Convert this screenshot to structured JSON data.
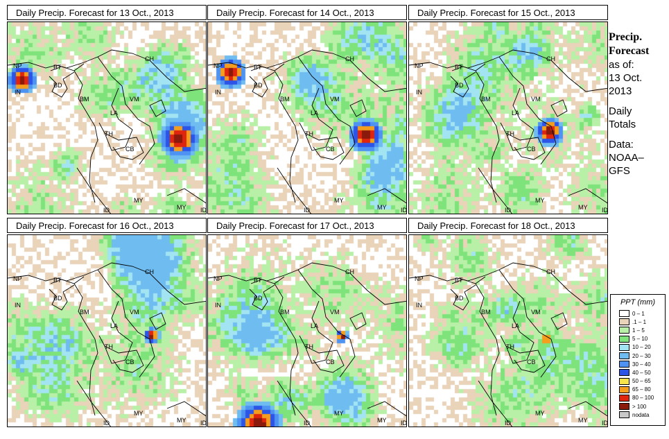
{
  "panels": [
    {
      "title": "Daily Precip. Forecast for  13 Oct., 2013",
      "seed": 13
    },
    {
      "title": "Daily Precip. Forecast for  14 Oct., 2013",
      "seed": 14
    },
    {
      "title": "Daily Precip. Forecast for  15 Oct., 2013",
      "seed": 15
    },
    {
      "title": "Daily Precip. Forecast for  16 Oct., 2013",
      "seed": 16
    },
    {
      "title": "Daily Precip. Forecast for  17 Oct., 2013",
      "seed": 17
    },
    {
      "title": "Daily Precip. Forecast for  18 Oct., 2013",
      "seed": 18
    }
  ],
  "country_labels": [
    "NP",
    "BT",
    "BD",
    "IN",
    "CH",
    "BM",
    "VM",
    "LA",
    "TH",
    "CB",
    "MY",
    "ID"
  ],
  "side": {
    "heading1": "Precip.",
    "heading2": "Forecast",
    "asof": "as of:",
    "date1": "13 Oct.",
    "date2": "2013",
    "daily1": "Daily",
    "daily2": "Totals",
    "data1": "Data:",
    "data2": "NOAA–",
    "data3": "GFS"
  },
  "legend": {
    "title": "PPT (mm)",
    "items": [
      {
        "label": "0 – 1",
        "color": "#ffffff"
      },
      {
        "label": ".1 – 1",
        "color": "#e9d3b9"
      },
      {
        "label": "1 – 5",
        "color": "#b9f0a7"
      },
      {
        "label": "5 – 10",
        "color": "#7fe37c"
      },
      {
        "label": "10 – 20",
        "color": "#a2e4f2"
      },
      {
        "label": "20 – 30",
        "color": "#6fbcf0"
      },
      {
        "label": "30 – 40",
        "color": "#4f93f2"
      },
      {
        "label": "40 – 50",
        "color": "#2c55e8"
      },
      {
        "label": "50 – 65",
        "color": "#f7e34a"
      },
      {
        "label": "65 – 80",
        "color": "#f59e1e"
      },
      {
        "label": "80 – 100",
        "color": "#e0250e"
      },
      {
        "label": "> 100",
        "color": "#8a1a0c"
      },
      {
        "label": "nodata",
        "color": "#c8c8c8"
      }
    ]
  }
}
